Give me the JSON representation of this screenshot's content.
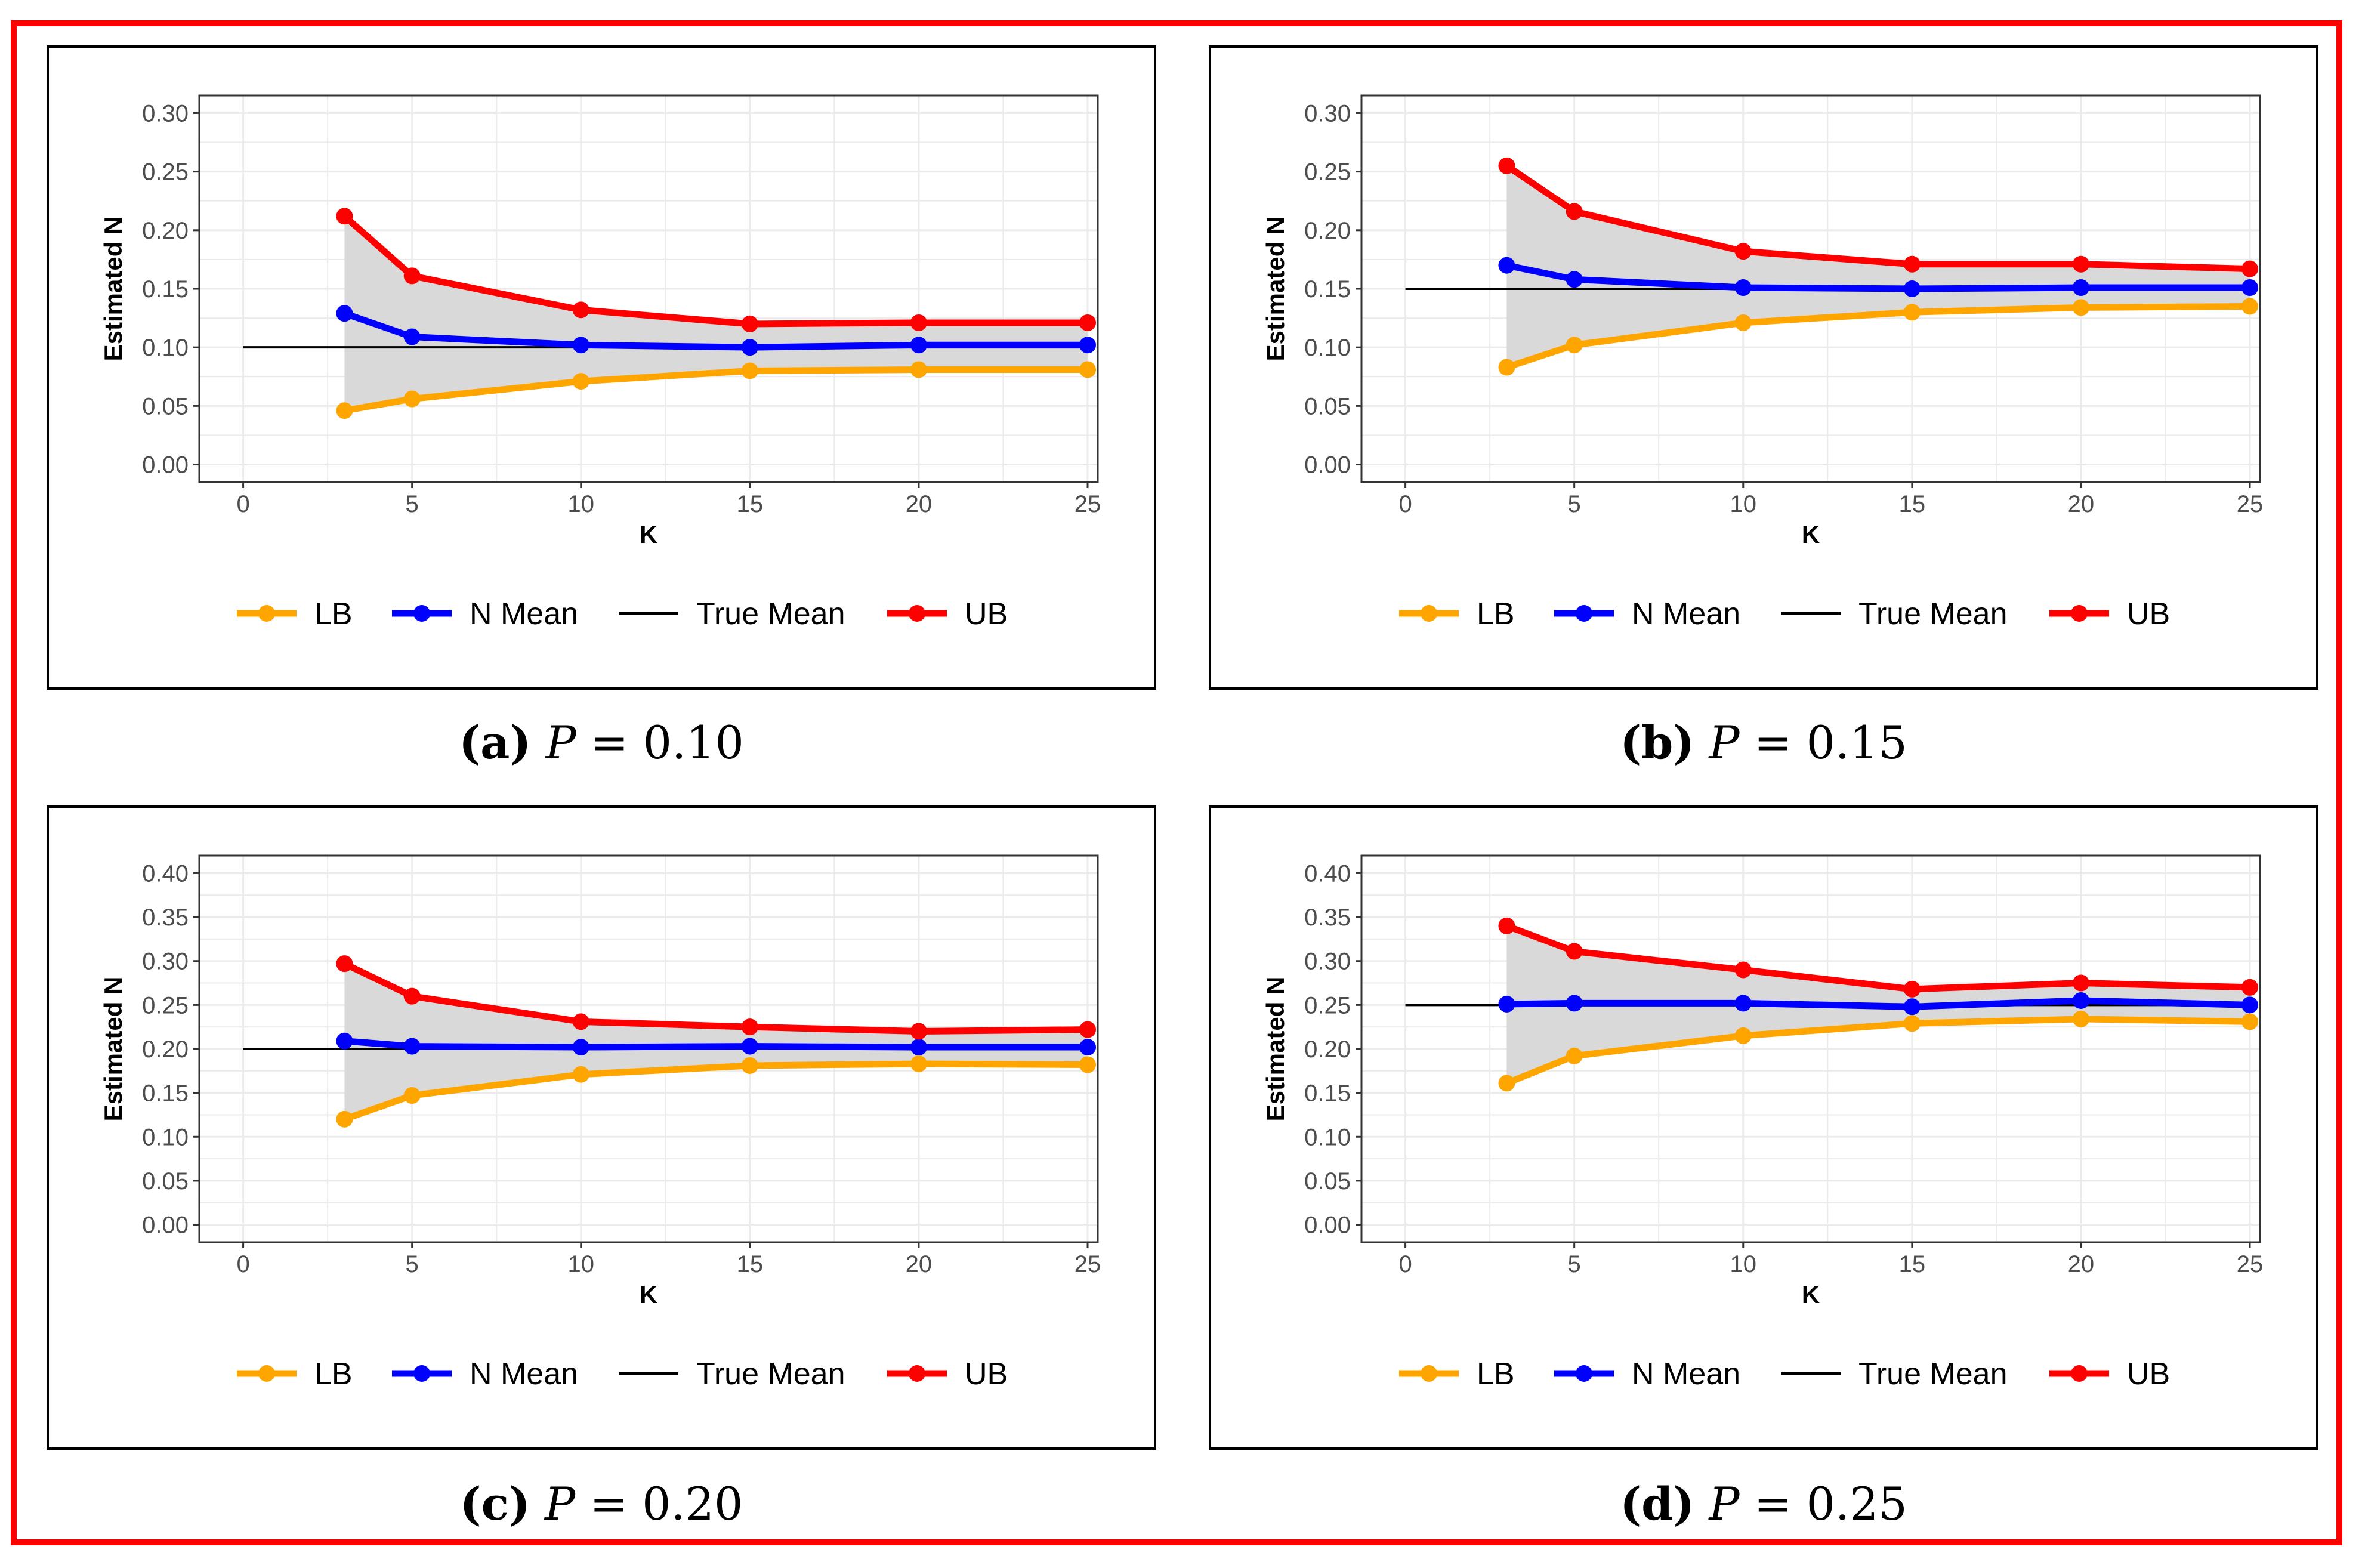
{
  "chart_data": [
    {
      "type": "line",
      "caption_tag": "(a)",
      "caption_var": "P",
      "caption_rest": "= 0.10",
      "xlabel": "K",
      "ylabel": "Estimated N",
      "xlim": [
        -1.3,
        25.3
      ],
      "xticks": [
        0,
        5,
        10,
        15,
        20,
        25
      ],
      "ylim": [
        -0.015,
        0.315
      ],
      "yticks": [
        0.0,
        0.05,
        0.1,
        0.15,
        0.2,
        0.25,
        0.3
      ],
      "ytick_labels": [
        "0.00",
        "0.05",
        "0.10",
        "0.15",
        "0.20",
        "0.25",
        "0.30"
      ],
      "x": [
        3,
        5,
        10,
        15,
        20,
        25
      ],
      "series": [
        {
          "name": "LB",
          "color": "#FFA500",
          "values": [
            0.046,
            0.056,
            0.071,
            0.08,
            0.081,
            0.081
          ]
        },
        {
          "name": "N Mean",
          "color": "#0000FF",
          "values": [
            0.129,
            0.109,
            0.102,
            0.1,
            0.102,
            0.102
          ]
        },
        {
          "name": "UB",
          "color": "#FF0000",
          "values": [
            0.212,
            0.161,
            0.132,
            0.12,
            0.121,
            0.121
          ]
        }
      ],
      "true_mean": {
        "name": "True Mean",
        "color": "#000000",
        "value": 0.1,
        "x_range": [
          0,
          25
        ]
      },
      "legend": [
        "LB",
        "N Mean",
        "True Mean",
        "UB"
      ],
      "legend_position": "bottom"
    },
    {
      "type": "line",
      "caption_tag": "(b)",
      "caption_var": "P",
      "caption_rest": "= 0.15",
      "xlabel": "K",
      "ylabel": "Estimated N",
      "xlim": [
        -1.3,
        25.3
      ],
      "xticks": [
        0,
        5,
        10,
        15,
        20,
        25
      ],
      "ylim": [
        -0.015,
        0.315
      ],
      "yticks": [
        0.0,
        0.05,
        0.1,
        0.15,
        0.2,
        0.25,
        0.3
      ],
      "ytick_labels": [
        "0.00",
        "0.05",
        "0.10",
        "0.15",
        "0.20",
        "0.25",
        "0.30"
      ],
      "x": [
        3,
        5,
        10,
        15,
        20,
        25
      ],
      "series": [
        {
          "name": "LB",
          "color": "#FFA500",
          "values": [
            0.083,
            0.102,
            0.121,
            0.13,
            0.134,
            0.135
          ]
        },
        {
          "name": "N Mean",
          "color": "#0000FF",
          "values": [
            0.17,
            0.158,
            0.151,
            0.15,
            0.151,
            0.151
          ]
        },
        {
          "name": "UB",
          "color": "#FF0000",
          "values": [
            0.255,
            0.216,
            0.182,
            0.171,
            0.171,
            0.167
          ]
        }
      ],
      "true_mean": {
        "name": "True Mean",
        "color": "#000000",
        "value": 0.15,
        "x_range": [
          0,
          25
        ]
      },
      "legend": [
        "LB",
        "N Mean",
        "True Mean",
        "UB"
      ],
      "legend_position": "bottom"
    },
    {
      "type": "line",
      "caption_tag": "(c)",
      "caption_var": "P",
      "caption_rest": "= 0.20",
      "xlabel": "K",
      "ylabel": "Estimated N",
      "xlim": [
        -1.3,
        25.3
      ],
      "xticks": [
        0,
        5,
        10,
        15,
        20,
        25
      ],
      "ylim": [
        -0.02,
        0.42
      ],
      "yticks": [
        0.0,
        0.05,
        0.1,
        0.15,
        0.2,
        0.25,
        0.3,
        0.35,
        0.4
      ],
      "ytick_labels": [
        "0.00",
        "0.05",
        "0.10",
        "0.15",
        "0.20",
        "0.25",
        "0.30",
        "0.35",
        "0.40"
      ],
      "x": [
        3,
        5,
        10,
        15,
        20,
        25
      ],
      "series": [
        {
          "name": "LB",
          "color": "#FFA500",
          "values": [
            0.12,
            0.147,
            0.171,
            0.181,
            0.183,
            0.182
          ]
        },
        {
          "name": "N Mean",
          "color": "#0000FF",
          "values": [
            0.209,
            0.203,
            0.202,
            0.203,
            0.202,
            0.202
          ]
        },
        {
          "name": "UB",
          "color": "#FF0000",
          "values": [
            0.297,
            0.26,
            0.231,
            0.225,
            0.22,
            0.222
          ]
        }
      ],
      "true_mean": {
        "name": "True Mean",
        "color": "#000000",
        "value": 0.2,
        "x_range": [
          0,
          25
        ]
      },
      "legend": [
        "LB",
        "N Mean",
        "True Mean",
        "UB"
      ],
      "legend_position": "bottom"
    },
    {
      "type": "line",
      "caption_tag": "(d)",
      "caption_var": "P",
      "caption_rest": "= 0.25",
      "xlabel": "K",
      "ylabel": "Estimated N",
      "xlim": [
        -1.3,
        25.3
      ],
      "xticks": [
        0,
        5,
        10,
        15,
        20,
        25
      ],
      "ylim": [
        -0.02,
        0.42
      ],
      "yticks": [
        0.0,
        0.05,
        0.1,
        0.15,
        0.2,
        0.25,
        0.3,
        0.35,
        0.4
      ],
      "ytick_labels": [
        "0.00",
        "0.05",
        "0.10",
        "0.15",
        "0.20",
        "0.25",
        "0.30",
        "0.35",
        "0.40"
      ],
      "x": [
        3,
        5,
        10,
        15,
        20,
        25
      ],
      "series": [
        {
          "name": "LB",
          "color": "#FFA500",
          "values": [
            0.161,
            0.192,
            0.215,
            0.229,
            0.234,
            0.231
          ]
        },
        {
          "name": "N Mean",
          "color": "#0000FF",
          "values": [
            0.251,
            0.252,
            0.252,
            0.248,
            0.255,
            0.25
          ]
        },
        {
          "name": "UB",
          "color": "#FF0000",
          "values": [
            0.34,
            0.311,
            0.29,
            0.268,
            0.275,
            0.27
          ]
        }
      ],
      "true_mean": {
        "name": "True Mean",
        "color": "#000000",
        "value": 0.25,
        "x_range": [
          0,
          25
        ]
      },
      "legend": [
        "LB",
        "N Mean",
        "True Mean",
        "UB"
      ],
      "legend_position": "bottom"
    }
  ],
  "colors": {
    "frame": "#FF0000",
    "ribbon": "#D9D9D9",
    "grid": "#EBEBEB"
  }
}
